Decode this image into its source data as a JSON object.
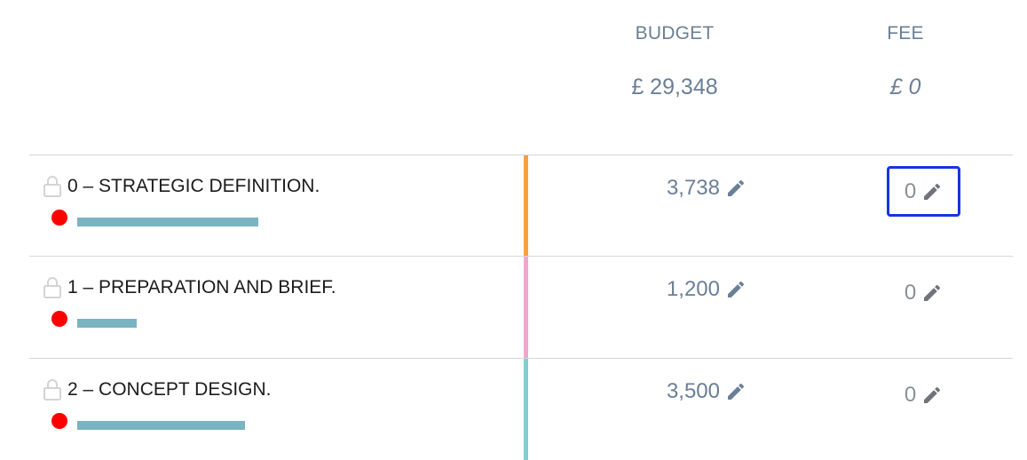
{
  "header": {
    "budget_label": "BUDGET",
    "budget_total": "£ 29,348",
    "fee_label": "FEE",
    "fee_total": "£ 0"
  },
  "rows": [
    {
      "title": "0 – STRATEGIC DEFINITION.",
      "budget": "3,738",
      "fee": "0",
      "strip_color": "#f4a23c",
      "progress_fraction": 0.55,
      "status_color": "#ff0000",
      "fee_focused": true
    },
    {
      "title": "1 – PREPARATION AND BRIEF.",
      "budget": "1,200",
      "fee": "0",
      "strip_color": "#eea6cf",
      "progress_fraction": 0.18,
      "status_color": "#ff0000",
      "fee_focused": false
    },
    {
      "title": "2 – CONCEPT DESIGN.",
      "budget": "3,500",
      "fee": "0",
      "strip_color": "#7fcfcf",
      "progress_fraction": 0.51,
      "status_color": "#ff0000",
      "fee_focused": false
    }
  ],
  "icons": {
    "lock": "lock-icon",
    "edit": "pencil-icon"
  },
  "colors": {
    "progress_bar": "#7ab3c1",
    "focus_outline": "#1436e0",
    "header_text": "#6b7f96"
  }
}
